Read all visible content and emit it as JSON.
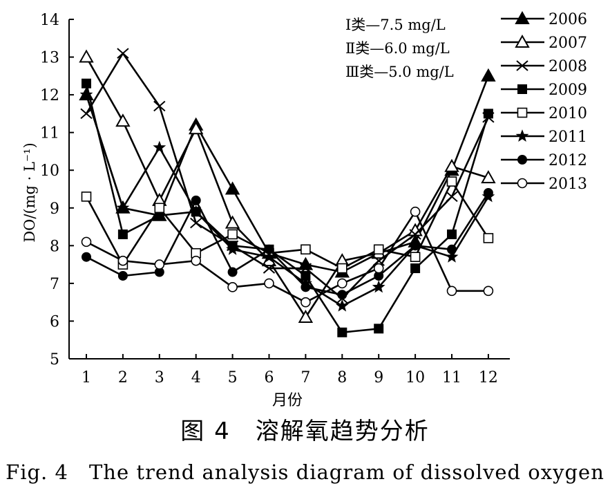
{
  "caption": {
    "cn": "图 4　溶解氧趋势分析",
    "en": "Fig. 4　The trend analysis diagram of dissolved oxygen"
  },
  "chart_data": {
    "type": "line",
    "xlabel": "月份",
    "ylabel": "DO/(mg · L⁻¹)",
    "categories": [
      "1",
      "2",
      "3",
      "4",
      "5",
      "6",
      "7",
      "8",
      "9",
      "10",
      "11",
      "12"
    ],
    "ylim": [
      5,
      14
    ],
    "yticks": [
      5,
      6,
      7,
      8,
      9,
      10,
      11,
      12,
      13,
      14
    ],
    "grid": false,
    "legend_position": "top-right",
    "annotations": [
      "Ⅰ类—7.5 mg/L",
      "Ⅱ类—6.0 mg/L",
      "Ⅲ类—5.0 mg/L"
    ],
    "series": [
      {
        "name": "2006",
        "marker": "triangle-filled",
        "values": [
          12.0,
          9.0,
          8.8,
          11.2,
          9.5,
          7.8,
          7.5,
          7.3,
          7.8,
          8.1,
          10.0,
          12.5
        ]
      },
      {
        "name": "2007",
        "marker": "triangle-open",
        "values": [
          13.0,
          11.3,
          9.2,
          11.1,
          8.6,
          7.6,
          6.1,
          7.6,
          7.8,
          8.4,
          10.1,
          9.8
        ]
      },
      {
        "name": "2008",
        "marker": "x",
        "values": [
          11.5,
          13.1,
          11.7,
          8.6,
          8.0,
          7.4,
          7.4,
          6.6,
          7.6,
          8.3,
          9.3,
          11.4
        ]
      },
      {
        "name": "2009",
        "marker": "square-filled",
        "values": [
          12.3,
          8.3,
          8.8,
          8.9,
          8.0,
          7.9,
          7.2,
          5.7,
          5.8,
          7.4,
          8.3,
          11.5
        ]
      },
      {
        "name": "2010",
        "marker": "square-open",
        "values": [
          9.3,
          7.5,
          9.0,
          7.8,
          8.3,
          7.8,
          7.9,
          7.4,
          7.9,
          7.7,
          9.7,
          8.2
        ]
      },
      {
        "name": "2011",
        "marker": "star",
        "values": [
          12.0,
          9.0,
          10.6,
          8.9,
          7.9,
          7.7,
          7.0,
          6.4,
          6.9,
          8.0,
          7.7,
          9.3
        ]
      },
      {
        "name": "2012",
        "marker": "circle-filled",
        "values": [
          7.7,
          7.2,
          7.3,
          9.2,
          7.3,
          7.9,
          6.9,
          6.7,
          7.2,
          8.0,
          7.9,
          9.4
        ]
      },
      {
        "name": "2013",
        "marker": "circle-open",
        "values": [
          8.1,
          7.6,
          7.5,
          7.6,
          6.9,
          7.0,
          6.5,
          7.0,
          7.4,
          8.9,
          6.8,
          6.8
        ]
      }
    ]
  }
}
